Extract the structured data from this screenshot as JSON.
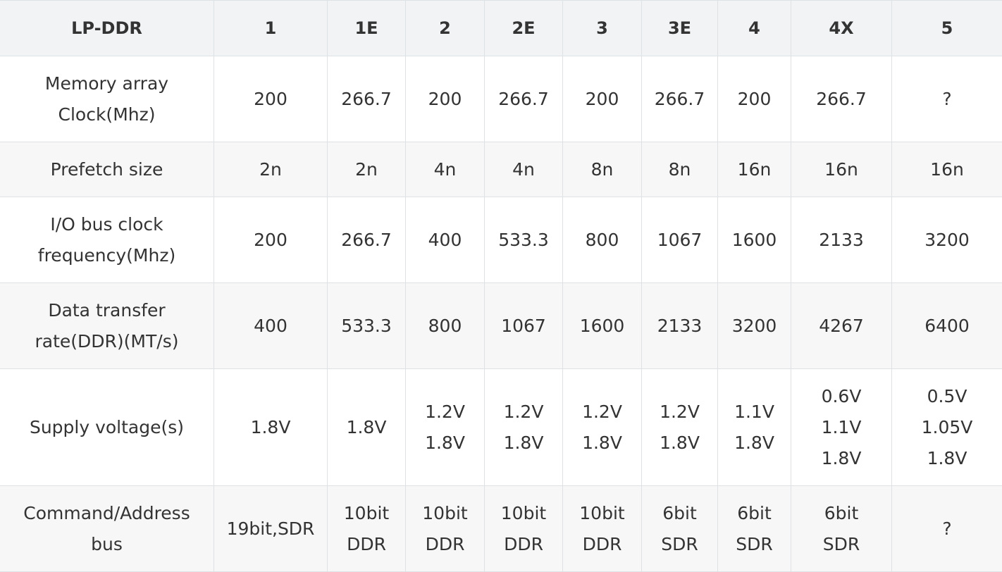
{
  "table": {
    "columns": [
      "LP-DDR",
      "1",
      "1E",
      "2",
      "2E",
      "3",
      "3E",
      "4",
      "4X",
      "5"
    ],
    "rows": [
      {
        "label": [
          "Memory array",
          "Clock(Mhz)"
        ],
        "cells": [
          [
            "200"
          ],
          [
            "266.7"
          ],
          [
            "200"
          ],
          [
            "266.7"
          ],
          [
            "200"
          ],
          [
            "266.7"
          ],
          [
            "200"
          ],
          [
            "266.7"
          ],
          [
            "?"
          ]
        ]
      },
      {
        "label": [
          "Prefetch size"
        ],
        "cells": [
          [
            "2n"
          ],
          [
            "2n"
          ],
          [
            "4n"
          ],
          [
            "4n"
          ],
          [
            "8n"
          ],
          [
            "8n"
          ],
          [
            "16n"
          ],
          [
            "16n"
          ],
          [
            "16n"
          ]
        ]
      },
      {
        "label": [
          "I/O bus clock",
          "frequency(Mhz)"
        ],
        "cells": [
          [
            "200"
          ],
          [
            "266.7"
          ],
          [
            "400"
          ],
          [
            "533.3"
          ],
          [
            "800"
          ],
          [
            "1067"
          ],
          [
            "1600"
          ],
          [
            "2133"
          ],
          [
            "3200"
          ]
        ]
      },
      {
        "label": [
          "Data transfer",
          "rate(DDR)(MT/s)"
        ],
        "cells": [
          [
            "400"
          ],
          [
            "533.3"
          ],
          [
            "800"
          ],
          [
            "1067"
          ],
          [
            "1600"
          ],
          [
            "2133"
          ],
          [
            "3200"
          ],
          [
            "4267"
          ],
          [
            "6400"
          ]
        ]
      },
      {
        "label": [
          "Supply voltage(s)"
        ],
        "cells": [
          [
            "1.8V"
          ],
          [
            "1.8V"
          ],
          [
            "1.2V",
            "1.8V"
          ],
          [
            "1.2V",
            "1.8V"
          ],
          [
            "1.2V",
            "1.8V"
          ],
          [
            "1.2V",
            "1.8V"
          ],
          [
            "1.1V",
            "1.8V"
          ],
          [
            "0.6V",
            "1.1V",
            "1.8V"
          ],
          [
            "0.5V",
            "1.05V",
            "1.8V"
          ]
        ]
      },
      {
        "label": [
          "Command/Address",
          "bus"
        ],
        "cells": [
          [
            "19bit,SDR"
          ],
          [
            "10bit",
            "DDR"
          ],
          [
            "10bit",
            "DDR"
          ],
          [
            "10bit",
            "DDR"
          ],
          [
            "10bit",
            "DDR"
          ],
          [
            "6bit",
            "SDR"
          ],
          [
            "6bit",
            "SDR"
          ],
          [
            "6bit",
            "SDR"
          ],
          [
            "?"
          ]
        ]
      }
    ]
  }
}
